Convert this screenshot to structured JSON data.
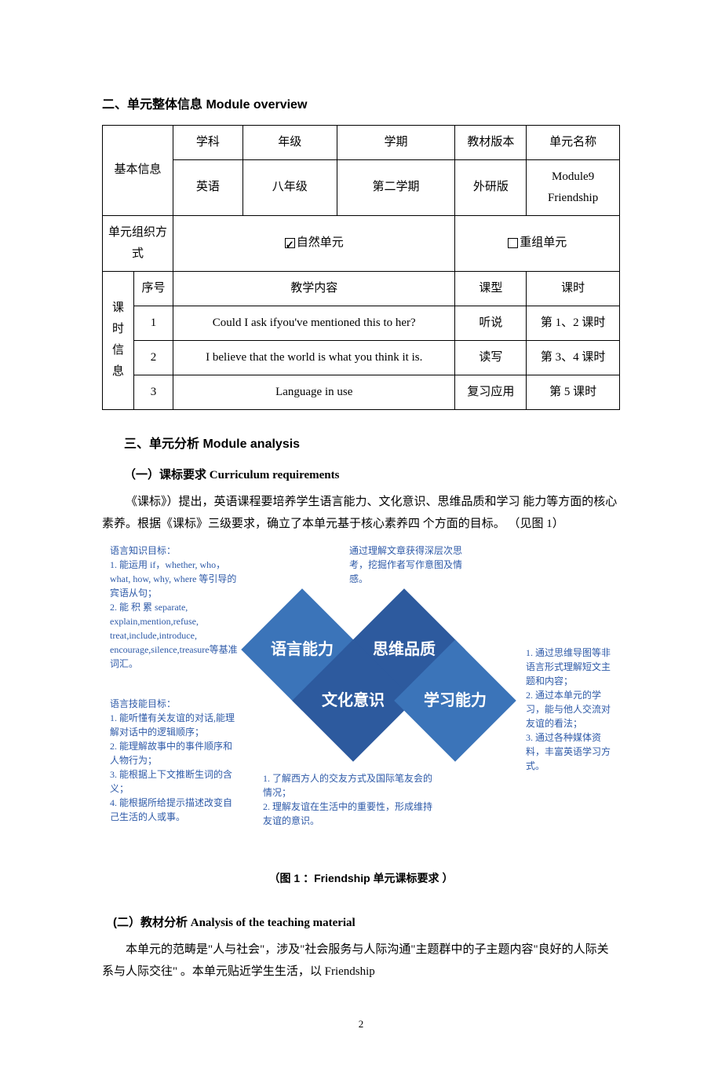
{
  "section2": {
    "heading_cn": "二、单元整体信息",
    "heading_en": "Module overview"
  },
  "infoTable": {
    "basicInfoLabel": "基本信息",
    "headers": {
      "subject": "学科",
      "grade": "年级",
      "semester": "学期",
      "textbook": "教材版本",
      "unitName": "单元名称"
    },
    "values": {
      "subject": "英语",
      "grade": "八年级",
      "semester": "第二学期",
      "textbook": "外研版",
      "unitName1": "Module9",
      "unitName2": "Friendship"
    },
    "orgLabel": "单元组织方式",
    "orgNatural": "自然单元",
    "orgReorg": "重组单元",
    "lessonInfoLabel": "课时信息",
    "colHeaders": {
      "seq": "序号",
      "content": "教学内容",
      "type": "课型",
      "period": "课时"
    },
    "rows": [
      {
        "seq": "1",
        "content": "Could I ask ifyou've mentioned this to her?",
        "type": "听说",
        "period": "第 1、2 课时"
      },
      {
        "seq": "2",
        "content": "I believe that the world is what you think it is.",
        "type": "读写",
        "period": "第 3、4 课时"
      },
      {
        "seq": "3",
        "content": "Language in use",
        "type": "复习应用",
        "period": "第 5 课时"
      }
    ]
  },
  "section3": {
    "heading_cn": "三、单元分析",
    "heading_en": "Module analysis",
    "sub1_cn": "（一）课标要求",
    "sub1_en": "Curriculum requirements",
    "para1": "《课标》）提出，英语课程要培养学生语言能力、文化意识、思维品质和学习 能力等方面的核心素养。根据《课标》三级要求，确立了本单元基于核心素养四 个方面的目标。  （见图 1）",
    "sub2_cn": "(二）教材分析",
    "sub2_en": "Analysis of the teaching material",
    "para2": "本单元的范畴是\"人与社会\"，涉及\"社会服务与人际沟通\"主题群中的子主题内容\"良好的人际关系与人际交往\" 。本单元贴近学生生活，以 Friendship"
  },
  "diagram": {
    "colors": {
      "diamond1": "#3b74b9",
      "diamond2": "#2d5a9e",
      "diamond3": "#2d5a9e",
      "diamond4": "#3b74b9",
      "textColor": "#2e5aa8"
    },
    "diamonds": {
      "d1": "语言\n能力",
      "d2": "思维\n品质",
      "d3": "文化\n意识",
      "d4": "学习\n能力"
    },
    "leftTop": "语言知识目标：\n1. 能运用 if，whether, who，what, how, why, where 等引导的宾语从句；\n2. 能 积 累 separate, explain,mention,refuse, treat,include,introduce, encourage,silence,treasure等基准词汇。",
    "leftBottom": "语言技能目标：\n1. 能听懂有关友谊的对话,能理解对话中的逻辑顺序；\n2. 能理解故事中的事件顺序和人物行为；\n3. 能根据上下文推断生词的含义；\n4. 能根据所给提示描述改变自己生活的人或事。",
    "topRight": "通过理解文章获得深层次思考，挖掘作者写作意图及情感。",
    "bottomCenter": "1. 了解西方人的交友方式及国际笔友会的情况；\n2. 理解友谊在生活中的重要性，形成维持友谊的意识。",
    "rightSide": "1. 通过思维导图等非语言形式理解短文主题和内容；\n2. 通过本单元的学习，能与他人交流对友谊的看法；\n3. 通过各种媒体资料，丰富英语学习方式。"
  },
  "figureCaption": "（图 1 ：Friendship 单元课标要求 ）",
  "pageNumber": "2"
}
